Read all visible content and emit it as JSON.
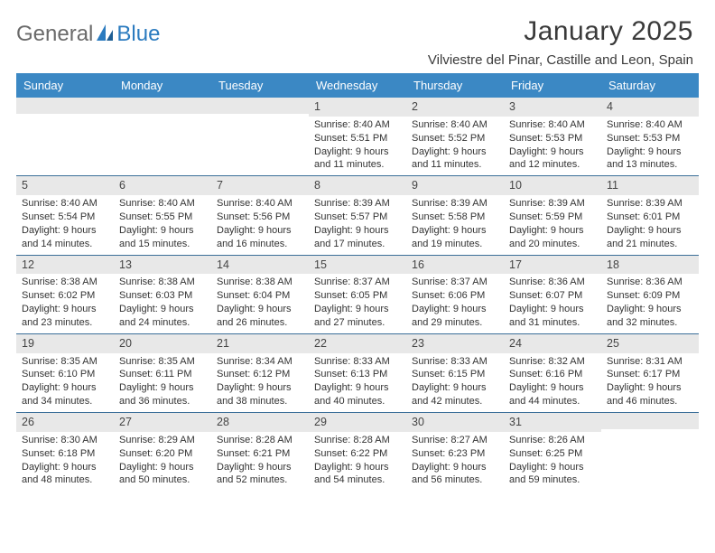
{
  "logo": {
    "word1": "General",
    "word2": "Blue"
  },
  "title": "January 2025",
  "location": "Vilviestre del Pinar, Castille and Leon, Spain",
  "colors": {
    "header_bg": "#3b88c4",
    "header_text": "#ffffff",
    "daynum_bg": "#e8e8e8",
    "week_border": "#3b6f99",
    "logo_gray": "#6a6a6a",
    "logo_blue": "#2b7bbf",
    "text": "#333333"
  },
  "day_headers": [
    "Sunday",
    "Monday",
    "Tuesday",
    "Wednesday",
    "Thursday",
    "Friday",
    "Saturday"
  ],
  "weeks": [
    [
      null,
      null,
      null,
      {
        "n": "1",
        "sr": "Sunrise: 8:40 AM",
        "ss": "Sunset: 5:51 PM",
        "d1": "Daylight: 9 hours",
        "d2": "and 11 minutes."
      },
      {
        "n": "2",
        "sr": "Sunrise: 8:40 AM",
        "ss": "Sunset: 5:52 PM",
        "d1": "Daylight: 9 hours",
        "d2": "and 11 minutes."
      },
      {
        "n": "3",
        "sr": "Sunrise: 8:40 AM",
        "ss": "Sunset: 5:53 PM",
        "d1": "Daylight: 9 hours",
        "d2": "and 12 minutes."
      },
      {
        "n": "4",
        "sr": "Sunrise: 8:40 AM",
        "ss": "Sunset: 5:53 PM",
        "d1": "Daylight: 9 hours",
        "d2": "and 13 minutes."
      }
    ],
    [
      {
        "n": "5",
        "sr": "Sunrise: 8:40 AM",
        "ss": "Sunset: 5:54 PM",
        "d1": "Daylight: 9 hours",
        "d2": "and 14 minutes."
      },
      {
        "n": "6",
        "sr": "Sunrise: 8:40 AM",
        "ss": "Sunset: 5:55 PM",
        "d1": "Daylight: 9 hours",
        "d2": "and 15 minutes."
      },
      {
        "n": "7",
        "sr": "Sunrise: 8:40 AM",
        "ss": "Sunset: 5:56 PM",
        "d1": "Daylight: 9 hours",
        "d2": "and 16 minutes."
      },
      {
        "n": "8",
        "sr": "Sunrise: 8:39 AM",
        "ss": "Sunset: 5:57 PM",
        "d1": "Daylight: 9 hours",
        "d2": "and 17 minutes."
      },
      {
        "n": "9",
        "sr": "Sunrise: 8:39 AM",
        "ss": "Sunset: 5:58 PM",
        "d1": "Daylight: 9 hours",
        "d2": "and 19 minutes."
      },
      {
        "n": "10",
        "sr": "Sunrise: 8:39 AM",
        "ss": "Sunset: 5:59 PM",
        "d1": "Daylight: 9 hours",
        "d2": "and 20 minutes."
      },
      {
        "n": "11",
        "sr": "Sunrise: 8:39 AM",
        "ss": "Sunset: 6:01 PM",
        "d1": "Daylight: 9 hours",
        "d2": "and 21 minutes."
      }
    ],
    [
      {
        "n": "12",
        "sr": "Sunrise: 8:38 AM",
        "ss": "Sunset: 6:02 PM",
        "d1": "Daylight: 9 hours",
        "d2": "and 23 minutes."
      },
      {
        "n": "13",
        "sr": "Sunrise: 8:38 AM",
        "ss": "Sunset: 6:03 PM",
        "d1": "Daylight: 9 hours",
        "d2": "and 24 minutes."
      },
      {
        "n": "14",
        "sr": "Sunrise: 8:38 AM",
        "ss": "Sunset: 6:04 PM",
        "d1": "Daylight: 9 hours",
        "d2": "and 26 minutes."
      },
      {
        "n": "15",
        "sr": "Sunrise: 8:37 AM",
        "ss": "Sunset: 6:05 PM",
        "d1": "Daylight: 9 hours",
        "d2": "and 27 minutes."
      },
      {
        "n": "16",
        "sr": "Sunrise: 8:37 AM",
        "ss": "Sunset: 6:06 PM",
        "d1": "Daylight: 9 hours",
        "d2": "and 29 minutes."
      },
      {
        "n": "17",
        "sr": "Sunrise: 8:36 AM",
        "ss": "Sunset: 6:07 PM",
        "d1": "Daylight: 9 hours",
        "d2": "and 31 minutes."
      },
      {
        "n": "18",
        "sr": "Sunrise: 8:36 AM",
        "ss": "Sunset: 6:09 PM",
        "d1": "Daylight: 9 hours",
        "d2": "and 32 minutes."
      }
    ],
    [
      {
        "n": "19",
        "sr": "Sunrise: 8:35 AM",
        "ss": "Sunset: 6:10 PM",
        "d1": "Daylight: 9 hours",
        "d2": "and 34 minutes."
      },
      {
        "n": "20",
        "sr": "Sunrise: 8:35 AM",
        "ss": "Sunset: 6:11 PM",
        "d1": "Daylight: 9 hours",
        "d2": "and 36 minutes."
      },
      {
        "n": "21",
        "sr": "Sunrise: 8:34 AM",
        "ss": "Sunset: 6:12 PM",
        "d1": "Daylight: 9 hours",
        "d2": "and 38 minutes."
      },
      {
        "n": "22",
        "sr": "Sunrise: 8:33 AM",
        "ss": "Sunset: 6:13 PM",
        "d1": "Daylight: 9 hours",
        "d2": "and 40 minutes."
      },
      {
        "n": "23",
        "sr": "Sunrise: 8:33 AM",
        "ss": "Sunset: 6:15 PM",
        "d1": "Daylight: 9 hours",
        "d2": "and 42 minutes."
      },
      {
        "n": "24",
        "sr": "Sunrise: 8:32 AM",
        "ss": "Sunset: 6:16 PM",
        "d1": "Daylight: 9 hours",
        "d2": "and 44 minutes."
      },
      {
        "n": "25",
        "sr": "Sunrise: 8:31 AM",
        "ss": "Sunset: 6:17 PM",
        "d1": "Daylight: 9 hours",
        "d2": "and 46 minutes."
      }
    ],
    [
      {
        "n": "26",
        "sr": "Sunrise: 8:30 AM",
        "ss": "Sunset: 6:18 PM",
        "d1": "Daylight: 9 hours",
        "d2": "and 48 minutes."
      },
      {
        "n": "27",
        "sr": "Sunrise: 8:29 AM",
        "ss": "Sunset: 6:20 PM",
        "d1": "Daylight: 9 hours",
        "d2": "and 50 minutes."
      },
      {
        "n": "28",
        "sr": "Sunrise: 8:28 AM",
        "ss": "Sunset: 6:21 PM",
        "d1": "Daylight: 9 hours",
        "d2": "and 52 minutes."
      },
      {
        "n": "29",
        "sr": "Sunrise: 8:28 AM",
        "ss": "Sunset: 6:22 PM",
        "d1": "Daylight: 9 hours",
        "d2": "and 54 minutes."
      },
      {
        "n": "30",
        "sr": "Sunrise: 8:27 AM",
        "ss": "Sunset: 6:23 PM",
        "d1": "Daylight: 9 hours",
        "d2": "and 56 minutes."
      },
      {
        "n": "31",
        "sr": "Sunrise: 8:26 AM",
        "ss": "Sunset: 6:25 PM",
        "d1": "Daylight: 9 hours",
        "d2": "and 59 minutes."
      },
      null
    ]
  ]
}
